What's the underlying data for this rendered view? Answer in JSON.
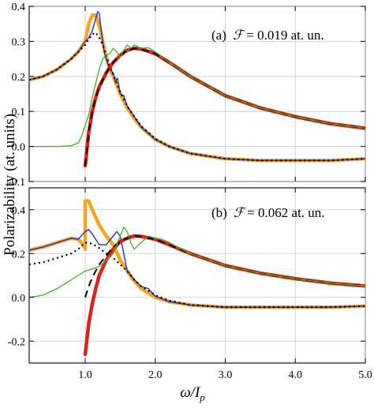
{
  "figure": {
    "ylabel": "Polarizability (at. units)",
    "xlabel_main": "ω/",
    "xlabel_italic": "I",
    "xlabel_sub": "p",
    "x_tick_labels": [
      "1.0",
      "2.0",
      "3.0",
      "4.0",
      "5.0"
    ]
  },
  "chart_data": [
    {
      "type": "line",
      "panel_label": "(a)",
      "annotation_symbol": "ℱ",
      "annotation_value": "= 0.019 at. un.",
      "xlim": [
        0.2,
        5.0
      ],
      "ylim": [
        -0.1,
        0.4
      ],
      "yticks": [
        -0.1,
        0.0,
        0.1,
        0.2,
        0.3,
        0.4
      ],
      "y_tick_labels": [
        "-0.1",
        "0.0",
        "0.1",
        "0.2",
        "0.3",
        "0.4"
      ],
      "grid": true,
      "series": [
        {
          "role": "real-orange",
          "color": "#f5a623",
          "width": 4.5,
          "dash": "",
          "x": [
            0.2,
            0.4,
            0.6,
            0.8,
            0.9,
            1.0,
            1.03,
            1.05,
            1.1,
            1.15,
            1.2,
            1.25,
            1.3,
            1.35,
            1.4,
            1.45,
            1.5,
            1.6,
            1.7,
            1.8,
            2.0,
            2.2,
            2.5,
            3.0,
            3.5,
            4.0,
            4.5,
            5.0
          ],
          "y": [
            0.19,
            0.2,
            0.22,
            0.25,
            0.27,
            0.3,
            0.33,
            0.35,
            0.375,
            0.375,
            0.345,
            0.3,
            0.255,
            0.22,
            0.2,
            0.175,
            0.15,
            0.11,
            0.08,
            0.055,
            0.02,
            0.0,
            -0.02,
            -0.035,
            -0.04,
            -0.04,
            -0.04,
            -0.035
          ]
        },
        {
          "role": "real-blue",
          "color": "#1f2fd0",
          "width": 1.4,
          "dash": "",
          "x": [
            0.2,
            0.4,
            0.6,
            0.8,
            0.9,
            1.0,
            1.05,
            1.1,
            1.15,
            1.18,
            1.2,
            1.23,
            1.27,
            1.3,
            1.35,
            1.4,
            1.43,
            1.46,
            1.5,
            1.55,
            1.6,
            1.7,
            1.8,
            2.0,
            2.2,
            2.5,
            3.0,
            3.5,
            4.0,
            4.5,
            5.0
          ],
          "y": [
            0.19,
            0.2,
            0.22,
            0.25,
            0.27,
            0.3,
            0.31,
            0.33,
            0.365,
            0.385,
            0.38,
            0.33,
            0.27,
            0.25,
            0.22,
            0.21,
            0.185,
            0.195,
            0.15,
            0.145,
            0.115,
            0.085,
            0.055,
            0.02,
            0.0,
            -0.02,
            -0.035,
            -0.04,
            -0.04,
            -0.04,
            -0.035
          ]
        },
        {
          "role": "real-dotted",
          "color": "#000000",
          "width": 2.2,
          "dash": "2,4",
          "x": [
            0.2,
            0.4,
            0.6,
            0.8,
            0.9,
            1.0,
            1.05,
            1.1,
            1.15,
            1.2,
            1.25,
            1.3,
            1.35,
            1.4,
            1.45,
            1.5,
            1.6,
            1.7,
            1.8,
            2.0,
            2.2,
            2.5,
            3.0,
            3.5,
            4.0,
            4.5,
            5.0
          ],
          "y": [
            0.19,
            0.2,
            0.22,
            0.25,
            0.27,
            0.29,
            0.305,
            0.32,
            0.325,
            0.31,
            0.29,
            0.26,
            0.23,
            0.205,
            0.18,
            0.155,
            0.115,
            0.085,
            0.058,
            0.022,
            0.0,
            -0.02,
            -0.035,
            -0.04,
            -0.04,
            -0.04,
            -0.035
          ]
        },
        {
          "role": "imag-red",
          "color": "#e0201b",
          "width": 4.5,
          "dash": "",
          "x": [
            1.0,
            1.05,
            1.1,
            1.15,
            1.2,
            1.3,
            1.4,
            1.5,
            1.6,
            1.7,
            1.8,
            2.0,
            2.2,
            2.5,
            3.0,
            3.5,
            4.0,
            4.5,
            5.0
          ],
          "y": [
            -0.055,
            0.04,
            0.1,
            0.14,
            0.17,
            0.21,
            0.24,
            0.26,
            0.275,
            0.28,
            0.278,
            0.265,
            0.24,
            0.2,
            0.145,
            0.11,
            0.085,
            0.065,
            0.052
          ]
        },
        {
          "role": "imag-dashed",
          "color": "#000000",
          "width": 2.0,
          "dash": "9,6",
          "x": [
            1.0,
            1.05,
            1.1,
            1.15,
            1.2,
            1.3,
            1.4,
            1.5,
            1.6,
            1.7,
            1.8,
            2.0,
            2.2,
            2.5,
            3.0,
            3.5,
            4.0,
            4.5,
            5.0
          ],
          "y": [
            -0.055,
            0.04,
            0.1,
            0.14,
            0.17,
            0.21,
            0.24,
            0.26,
            0.275,
            0.28,
            0.278,
            0.265,
            0.24,
            0.2,
            0.145,
            0.11,
            0.085,
            0.065,
            0.052
          ]
        },
        {
          "role": "imag-green",
          "color": "#3cb521",
          "width": 1.3,
          "dash": "",
          "x": [
            0.2,
            0.6,
            0.8,
            0.9,
            0.95,
            1.0,
            1.05,
            1.1,
            1.15,
            1.2,
            1.25,
            1.3,
            1.35,
            1.4,
            1.45,
            1.5,
            1.55,
            1.6,
            1.65,
            1.7,
            1.8,
            1.9,
            2.0,
            2.2,
            2.5,
            3.0,
            3.5,
            4.0,
            4.5,
            5.0
          ],
          "y": [
            0.0,
            0.0,
            0.002,
            0.01,
            0.03,
            0.06,
            0.09,
            0.14,
            0.18,
            0.22,
            0.25,
            0.26,
            0.265,
            0.28,
            0.27,
            0.255,
            0.275,
            0.29,
            0.28,
            0.29,
            0.28,
            0.282,
            0.27,
            0.24,
            0.2,
            0.145,
            0.11,
            0.085,
            0.065,
            0.052
          ]
        }
      ]
    },
    {
      "type": "line",
      "panel_label": "(b)",
      "annotation_symbol": "ℱ",
      "annotation_value": "= 0.062 at. un.",
      "xlim": [
        0.2,
        5.0
      ],
      "ylim": [
        -0.3,
        0.5
      ],
      "yticks": [
        -0.2,
        0.0,
        0.2,
        0.4
      ],
      "y_tick_labels": [
        "-0.2",
        "0.0",
        "0.2",
        "0.4"
      ],
      "grid": true,
      "series": [
        {
          "role": "real-orange",
          "color": "#f5a623",
          "width": 4.5,
          "dash": "",
          "x": [
            0.2,
            0.4,
            0.6,
            0.8,
            0.9,
            0.97,
            1.0,
            1.0,
            1.05,
            1.1,
            1.15,
            1.2,
            1.3,
            1.4,
            1.5,
            1.6,
            1.7,
            1.8,
            2.0,
            2.2,
            2.5,
            3.0,
            3.5,
            4.0,
            4.5,
            5.0
          ],
          "y": [
            0.215,
            0.23,
            0.25,
            0.27,
            0.265,
            0.24,
            0.22,
            0.44,
            0.44,
            0.4,
            0.365,
            0.33,
            0.28,
            0.24,
            0.17,
            0.12,
            0.075,
            0.04,
            0.0,
            -0.02,
            -0.035,
            -0.045,
            -0.045,
            -0.045,
            -0.045,
            -0.04
          ]
        },
        {
          "role": "real-blue",
          "color": "#1f2fd0",
          "width": 1.4,
          "dash": "",
          "x": [
            0.2,
            0.4,
            0.6,
            0.8,
            0.9,
            1.0,
            1.05,
            1.1,
            1.2,
            1.3,
            1.4,
            1.45,
            1.5,
            1.55,
            1.6,
            1.7,
            1.8,
            1.9,
            2.0,
            2.2,
            2.5,
            3.0,
            3.5,
            4.0,
            4.5,
            5.0
          ],
          "y": [
            0.215,
            0.23,
            0.25,
            0.27,
            0.265,
            0.3,
            0.31,
            0.29,
            0.24,
            0.24,
            0.28,
            0.3,
            0.28,
            0.2,
            0.12,
            0.08,
            0.05,
            0.04,
            0.005,
            -0.02,
            -0.035,
            -0.045,
            -0.045,
            -0.045,
            -0.045,
            -0.04
          ]
        },
        {
          "role": "real-dotted",
          "color": "#000000",
          "width": 2.2,
          "dash": "2,4",
          "x": [
            0.2,
            0.4,
            0.6,
            0.8,
            0.9,
            1.0,
            1.1,
            1.2,
            1.3,
            1.4,
            1.5,
            1.6,
            1.7,
            1.8,
            2.0,
            2.2,
            2.5,
            3.0,
            3.5,
            4.0,
            4.5,
            5.0
          ],
          "y": [
            0.15,
            0.16,
            0.18,
            0.2,
            0.22,
            0.25,
            0.245,
            0.225,
            0.2,
            0.18,
            0.15,
            0.12,
            0.08,
            0.05,
            0.01,
            -0.015,
            -0.035,
            -0.045,
            -0.045,
            -0.045,
            -0.045,
            -0.04
          ]
        },
        {
          "role": "imag-red",
          "color": "#e0201b",
          "width": 4.5,
          "dash": "",
          "x": [
            1.0,
            1.05,
            1.1,
            1.15,
            1.2,
            1.3,
            1.4,
            1.5,
            1.6,
            1.7,
            1.8,
            2.0,
            2.2,
            2.5,
            3.0,
            3.5,
            4.0,
            4.5,
            5.0
          ],
          "y": [
            -0.26,
            -0.12,
            -0.03,
            0.04,
            0.1,
            0.17,
            0.22,
            0.255,
            0.27,
            0.28,
            0.278,
            0.265,
            0.24,
            0.2,
            0.145,
            0.11,
            0.085,
            0.065,
            0.052
          ]
        },
        {
          "role": "imag-dashed",
          "color": "#000000",
          "width": 2.0,
          "dash": "9,6",
          "x": [
            1.0,
            1.05,
            1.1,
            1.15,
            1.2,
            1.3,
            1.4,
            1.5,
            1.6,
            1.7,
            1.8,
            2.0,
            2.2,
            2.5,
            3.0,
            3.5,
            4.0,
            4.5,
            5.0
          ],
          "y": [
            0.0,
            0.05,
            0.09,
            0.12,
            0.15,
            0.19,
            0.23,
            0.255,
            0.27,
            0.28,
            0.278,
            0.265,
            0.24,
            0.2,
            0.145,
            0.11,
            0.085,
            0.065,
            0.052
          ]
        },
        {
          "role": "imag-green",
          "color": "#3cb521",
          "width": 1.3,
          "dash": "",
          "x": [
            0.2,
            0.4,
            0.6,
            0.8,
            0.9,
            1.0,
            1.1,
            1.2,
            1.3,
            1.4,
            1.5,
            1.55,
            1.6,
            1.65,
            1.7,
            1.8,
            1.9,
            2.0,
            2.1,
            2.2,
            2.5,
            3.0,
            3.5,
            4.0,
            4.5,
            5.0
          ],
          "y": [
            0.0,
            0.01,
            0.04,
            0.08,
            0.1,
            0.12,
            0.13,
            0.14,
            0.17,
            0.2,
            0.28,
            0.32,
            0.3,
            0.25,
            0.22,
            0.25,
            0.28,
            0.27,
            0.265,
            0.25,
            0.2,
            0.145,
            0.11,
            0.085,
            0.065,
            0.052
          ]
        }
      ]
    }
  ]
}
